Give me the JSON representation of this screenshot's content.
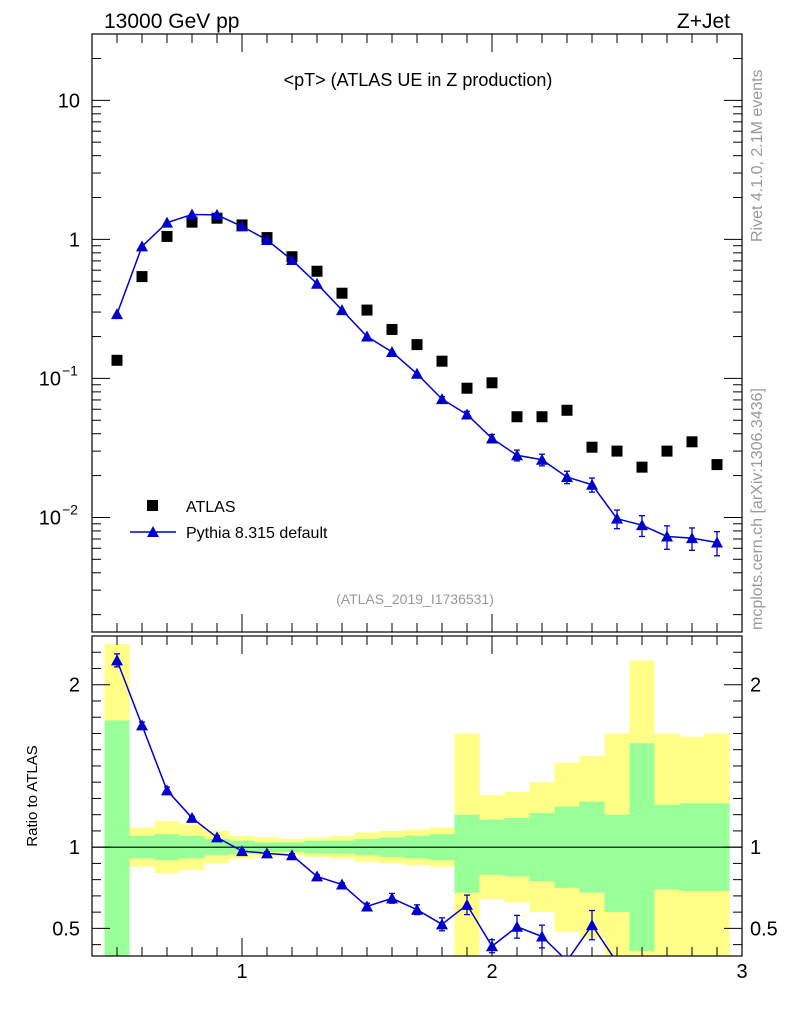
{
  "header": {
    "left": "13000 GeV pp",
    "right": "Z+Jet"
  },
  "title": "<pT> (ATLAS UE in Z production)",
  "side_labels": {
    "rivet": "Rivet 4.1.0,  2.1M events",
    "site": "mcplots.cern.ch [arXiv:1306.3436]"
  },
  "analysis_id": "(ATLAS_2019_I1736531)",
  "colors": {
    "data": "#000000",
    "mc": "#0000cc",
    "band_inner": "#99ff99",
    "band_outer": "#ffff88"
  },
  "chart_data": [
    {
      "type": "scatter",
      "name": "main",
      "yscale": "log",
      "xlim": [
        0.4,
        3.0
      ],
      "ylim": [
        0.0015,
        30
      ],
      "yticks": [
        {
          "value": 10,
          "label": "10"
        },
        {
          "value": 1,
          "label": "1"
        },
        {
          "value": 0.1,
          "label_base": "10",
          "label_exp": "−1"
        },
        {
          "value": 0.01,
          "label_base": "10",
          "label_exp": "−2"
        }
      ],
      "legend": [
        {
          "label": "ATLAS",
          "marker": "square"
        },
        {
          "label": "Pythia 8.315 default",
          "marker": "triangle"
        }
      ],
      "series": [
        {
          "name": "ATLAS",
          "x": [
            0.5,
            0.6,
            0.7,
            0.8,
            0.9,
            1.0,
            1.1,
            1.2,
            1.3,
            1.4,
            1.5,
            1.6,
            1.7,
            1.8,
            1.9,
            2.0,
            2.1,
            2.2,
            2.3,
            2.4,
            2.5,
            2.6,
            2.7,
            2.8,
            2.9
          ],
          "y": [
            0.135,
            0.54,
            1.05,
            1.33,
            1.42,
            1.27,
            1.03,
            0.75,
            0.59,
            0.41,
            0.31,
            0.225,
            0.175,
            0.133,
            0.085,
            0.093,
            0.053,
            0.053,
            0.059,
            0.032,
            0.03,
            0.023,
            0.03,
            0.035,
            0.024
          ]
        },
        {
          "name": "Pythia 8.315 default",
          "x": [
            0.5,
            0.6,
            0.7,
            0.8,
            0.9,
            1.0,
            1.1,
            1.2,
            1.3,
            1.4,
            1.5,
            1.6,
            1.7,
            1.8,
            1.9,
            2.0,
            2.1,
            2.2,
            2.3,
            2.4,
            2.5,
            2.6,
            2.7,
            2.8,
            2.9
          ],
          "y": [
            0.29,
            0.89,
            1.32,
            1.51,
            1.5,
            1.24,
            0.99,
            0.71,
            0.48,
            0.31,
            0.2,
            0.155,
            0.108,
            0.071,
            0.055,
            0.037,
            0.028,
            0.026,
            0.0195,
            0.0172,
            0.0098,
            0.0088,
            0.0073,
            0.0071,
            0.0066
          ],
          "yerr": [
            0,
            0,
            0,
            0,
            0,
            0,
            0,
            0,
            0,
            0,
            0,
            0,
            0,
            0.003,
            0.003,
            0.0025,
            0.0025,
            0.0025,
            0.002,
            0.002,
            0.0015,
            0.0015,
            0.0014,
            0.0013,
            0.0013
          ]
        }
      ]
    },
    {
      "type": "line",
      "name": "ratio",
      "ylabel": "Ratio to ATLAS",
      "xlim": [
        0.4,
        3.0
      ],
      "ylim": [
        0.33,
        2.3
      ],
      "xticks": [
        1,
        2,
        3
      ],
      "yticks": [
        0.5,
        1,
        2
      ],
      "bins": [
        0.45,
        0.55,
        0.65,
        0.75,
        0.85,
        0.95,
        1.05,
        1.15,
        1.25,
        1.35,
        1.45,
        1.55,
        1.65,
        1.75,
        1.85,
        1.95,
        2.05,
        2.15,
        2.25,
        2.35,
        2.45,
        2.55,
        2.65,
        2.75,
        2.85,
        2.95
      ],
      "band_inner": [
        [
          0.0,
          1.78
        ],
        [
          0.93,
          1.07
        ],
        [
          0.92,
          1.08
        ],
        [
          0.93,
          1.07
        ],
        [
          0.95,
          1.05
        ],
        [
          0.96,
          1.04
        ],
        [
          0.97,
          1.03
        ],
        [
          0.97,
          1.03
        ],
        [
          0.96,
          1.04
        ],
        [
          0.96,
          1.04
        ],
        [
          0.95,
          1.05
        ],
        [
          0.94,
          1.06
        ],
        [
          0.93,
          1.07
        ],
        [
          0.92,
          1.08
        ],
        [
          0.72,
          1.2
        ],
        [
          0.83,
          1.17
        ],
        [
          0.82,
          1.18
        ],
        [
          0.79,
          1.21
        ],
        [
          0.75,
          1.25
        ],
        [
          0.72,
          1.28
        ],
        [
          0.6,
          1.2
        ],
        [
          0.36,
          1.64
        ],
        [
          0.74,
          1.26
        ],
        [
          0.73,
          1.27
        ],
        [
          0.73,
          1.27
        ]
      ],
      "band_outer": [
        [
          0.0,
          2.25
        ],
        [
          0.88,
          1.12
        ],
        [
          0.84,
          1.16
        ],
        [
          0.86,
          1.14
        ],
        [
          0.9,
          1.1
        ],
        [
          0.93,
          1.07
        ],
        [
          0.94,
          1.06
        ],
        [
          0.95,
          1.05
        ],
        [
          0.94,
          1.06
        ],
        [
          0.93,
          1.07
        ],
        [
          0.91,
          1.09
        ],
        [
          0.9,
          1.1
        ],
        [
          0.89,
          1.11
        ],
        [
          0.88,
          1.12
        ],
        [
          0.0,
          1.7
        ],
        [
          0.68,
          1.32
        ],
        [
          0.66,
          1.34
        ],
        [
          0.6,
          1.4
        ],
        [
          0.48,
          1.52
        ],
        [
          0.44,
          1.56
        ],
        [
          0.3,
          1.7
        ],
        [
          0.0,
          2.15
        ],
        [
          0.3,
          1.7
        ],
        [
          0.0,
          1.68
        ],
        [
          0.0,
          1.7
        ]
      ],
      "series": [
        {
          "name": "Pythia 8.315 default",
          "x": [
            0.5,
            0.6,
            0.7,
            0.8,
            0.9,
            1.0,
            1.1,
            1.2,
            1.3,
            1.4,
            1.5,
            1.6,
            1.7,
            1.8,
            1.9,
            2.0,
            2.1,
            2.2,
            2.3,
            2.4,
            2.5
          ],
          "y": [
            2.15,
            1.75,
            1.35,
            1.18,
            1.06,
            0.976,
            0.962,
            0.95,
            0.82,
            0.77,
            0.635,
            0.685,
            0.615,
            0.525,
            0.645,
            0.39,
            0.51,
            0.45,
            0.3,
            0.52,
            0.29
          ],
          "yerr": [
            0.04,
            0.02,
            0.02,
            0.01,
            0.01,
            0.01,
            0.01,
            0.01,
            0.01,
            0.01,
            0.02,
            0.03,
            0.03,
            0.04,
            0.06,
            0.04,
            0.07,
            0.07,
            0.0,
            0.09,
            0.0
          ]
        }
      ]
    }
  ]
}
